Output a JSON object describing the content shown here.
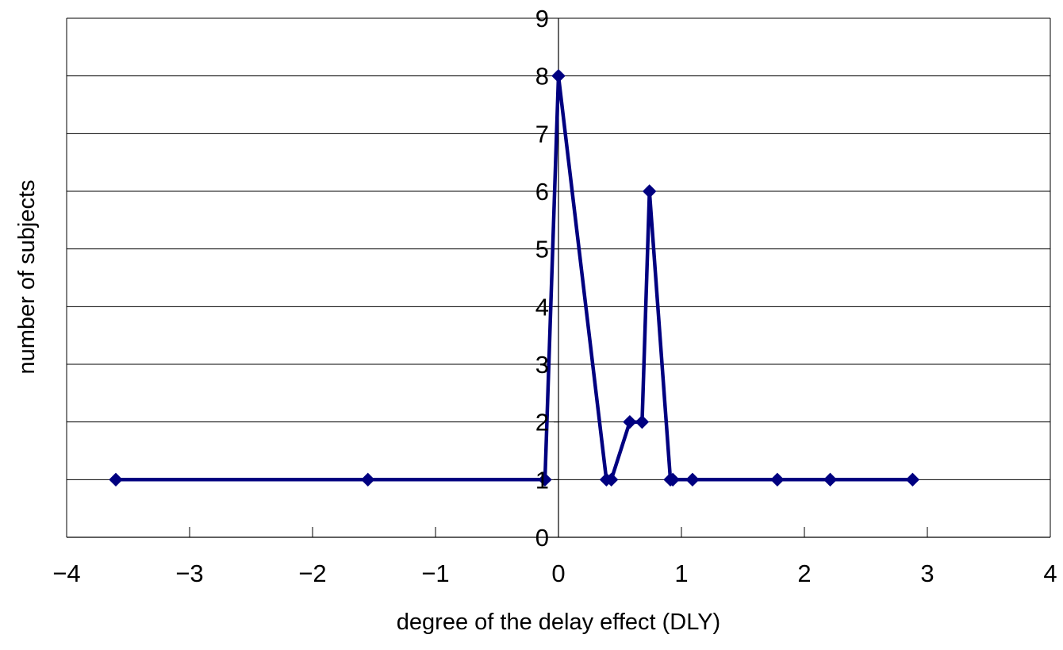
{
  "chart_data": {
    "type": "line",
    "title": "",
    "xlabel": "degree of the delay effect (DLY)",
    "ylabel": "number of subjects",
    "xlim": [
      -4,
      4
    ],
    "ylim": [
      0,
      9
    ],
    "x_ticks": [
      -4,
      -3,
      -2,
      -1,
      0,
      1,
      2,
      3,
      4
    ],
    "y_ticks": [
      0,
      1,
      2,
      3,
      4,
      5,
      6,
      7,
      8,
      9
    ],
    "x_tick_labels": [
      "−4",
      "−3",
      "−2",
      "−1",
      "0",
      "1",
      "2",
      "3",
      "4"
    ],
    "y_tick_labels": [
      "0",
      "1",
      "2",
      "3",
      "4",
      "5",
      "6",
      "7",
      "8",
      "9"
    ],
    "grid": "horizontal",
    "legend": "none",
    "series": [
      {
        "color": "#000080",
        "marker": "diamond",
        "points": [
          {
            "x": -3.6,
            "y": 1
          },
          {
            "x": -1.55,
            "y": 1
          },
          {
            "x": -0.11,
            "y": 1
          },
          {
            "x": 0.0,
            "y": 8
          },
          {
            "x": 0.39,
            "y": 1
          },
          {
            "x": 0.43,
            "y": 1
          },
          {
            "x": 0.58,
            "y": 2
          },
          {
            "x": 0.68,
            "y": 2
          },
          {
            "x": 0.74,
            "y": 6
          },
          {
            "x": 0.91,
            "y": 1
          },
          {
            "x": 0.93,
            "y": 1
          },
          {
            "x": 1.09,
            "y": 1
          },
          {
            "x": 1.78,
            "y": 1
          },
          {
            "x": 2.21,
            "y": 1
          },
          {
            "x": 2.88,
            "y": 1
          }
        ]
      }
    ]
  }
}
